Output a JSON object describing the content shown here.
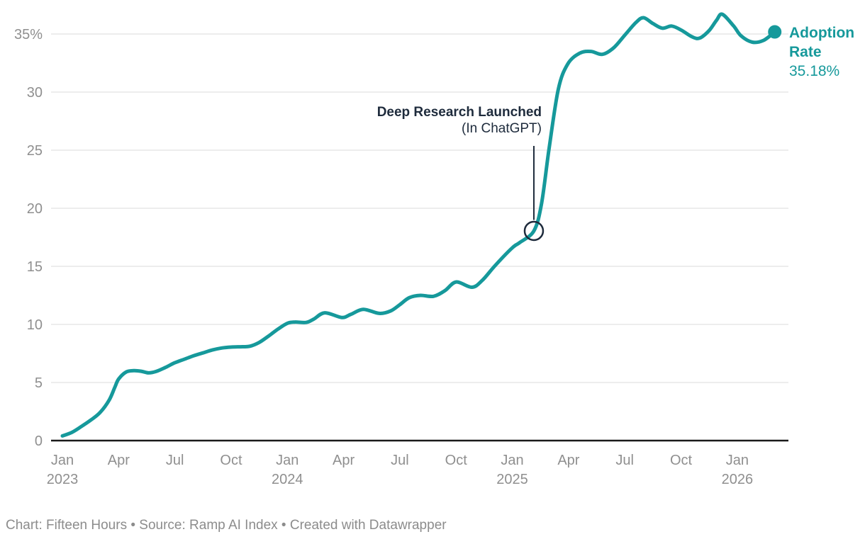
{
  "colors": {
    "teal": "#16999b",
    "dark": "#1e2b3c",
    "gray_axis": "#8f8f8f",
    "gray_footer": "#8c8c8c",
    "gridline": "#e7e7e7",
    "baseline": "#1a1a1a",
    "background": "#ffffff"
  },
  "chart_data": {
    "type": "line",
    "title": "",
    "series_label": "Adoption Rate",
    "end_value_label": "35.18%",
    "end_value": 35.18,
    "ylabel": "",
    "xlabel": "",
    "ylim": [
      0,
      37.5
    ],
    "x_unit": "months since Jan 2023 (fractional)",
    "x_range_months": [
      0,
      38
    ],
    "grid": "horizontal",
    "legend_position": "right-end-of-line",
    "yticks": [
      {
        "v": 0,
        "label": "0"
      },
      {
        "v": 5,
        "label": "5"
      },
      {
        "v": 10,
        "label": "10"
      },
      {
        "v": 15,
        "label": "15"
      },
      {
        "v": 20,
        "label": "20"
      },
      {
        "v": 25,
        "label": "25"
      },
      {
        "v": 30,
        "label": "30"
      },
      {
        "v": 35,
        "label": "35%"
      }
    ],
    "xticks": [
      {
        "t": 0,
        "month": "Jan",
        "year": "2023"
      },
      {
        "t": 3,
        "month": "Apr",
        "year": ""
      },
      {
        "t": 6,
        "month": "Jul",
        "year": ""
      },
      {
        "t": 9,
        "month": "Oct",
        "year": ""
      },
      {
        "t": 12,
        "month": "Jan",
        "year": "2024"
      },
      {
        "t": 15,
        "month": "Apr",
        "year": ""
      },
      {
        "t": 18,
        "month": "Jul",
        "year": ""
      },
      {
        "t": 21,
        "month": "Oct",
        "year": ""
      },
      {
        "t": 24,
        "month": "Jan",
        "year": "2025"
      },
      {
        "t": 27,
        "month": "Apr",
        "year": ""
      },
      {
        "t": 30,
        "month": "Jul",
        "year": ""
      },
      {
        "t": 33,
        "month": "Oct",
        "year": ""
      },
      {
        "t": 36,
        "month": "Jan",
        "year": "2026"
      }
    ],
    "points": [
      [
        0,
        0.4
      ],
      [
        0.5,
        0.7
      ],
      [
        1,
        1.2
      ],
      [
        1.5,
        1.75
      ],
      [
        2,
        2.4
      ],
      [
        2.5,
        3.5
      ],
      [
        2.8,
        4.6
      ],
      [
        3,
        5.3
      ],
      [
        3.4,
        5.9
      ],
      [
        3.8,
        6.02
      ],
      [
        4.2,
        5.97
      ],
      [
        4.6,
        5.83
      ],
      [
        5,
        5.95
      ],
      [
        5.5,
        6.3
      ],
      [
        6,
        6.7
      ],
      [
        6.5,
        7.0
      ],
      [
        7,
        7.3
      ],
      [
        7.5,
        7.55
      ],
      [
        8,
        7.8
      ],
      [
        8.5,
        7.97
      ],
      [
        9,
        8.05
      ],
      [
        9.6,
        8.08
      ],
      [
        10,
        8.12
      ],
      [
        10.5,
        8.45
      ],
      [
        11,
        9.0
      ],
      [
        11.5,
        9.6
      ],
      [
        12,
        10.1
      ],
      [
        12.4,
        10.2
      ],
      [
        13,
        10.17
      ],
      [
        13.4,
        10.45
      ],
      [
        14,
        11.0
      ],
      [
        14.9,
        10.6
      ],
      [
        15.4,
        10.88
      ],
      [
        16.05,
        11.3
      ],
      [
        16.9,
        10.95
      ],
      [
        17.5,
        11.15
      ],
      [
        18,
        11.7
      ],
      [
        18.5,
        12.3
      ],
      [
        19.1,
        12.5
      ],
      [
        19.8,
        12.42
      ],
      [
        20.4,
        12.9
      ],
      [
        21,
        13.65
      ],
      [
        21.85,
        13.2
      ],
      [
        22.4,
        13.8
      ],
      [
        23.1,
        15.1
      ],
      [
        24,
        16.6
      ],
      [
        24.4,
        17.05
      ],
      [
        25.15,
        18.05
      ],
      [
        25.55,
        20.3
      ],
      [
        25.95,
        25.0
      ],
      [
        26.45,
        30.2
      ],
      [
        26.95,
        32.4
      ],
      [
        27.6,
        33.35
      ],
      [
        28.2,
        33.5
      ],
      [
        28.8,
        33.25
      ],
      [
        29.4,
        33.8
      ],
      [
        30,
        34.9
      ],
      [
        30.6,
        36.0
      ],
      [
        31,
        36.4
      ],
      [
        31.5,
        35.9
      ],
      [
        32,
        35.5
      ],
      [
        32.5,
        35.68
      ],
      [
        33,
        35.35
      ],
      [
        33.6,
        34.75
      ],
      [
        34,
        34.65
      ],
      [
        34.5,
        35.3
      ],
      [
        34.9,
        36.2
      ],
      [
        35.2,
        36.7
      ],
      [
        35.8,
        35.7
      ],
      [
        36.2,
        34.85
      ],
      [
        36.8,
        34.3
      ],
      [
        37.4,
        34.45
      ],
      [
        38,
        35.18
      ]
    ],
    "annotation": {
      "line1": "Deep Research Launched",
      "line2": "(In ChatGPT)",
      "t": 25.15,
      "v": 18.05
    }
  },
  "footer": {
    "text": "Chart: Fifteen Hours • Source: Ramp AI Index • Created with Datawrapper"
  }
}
